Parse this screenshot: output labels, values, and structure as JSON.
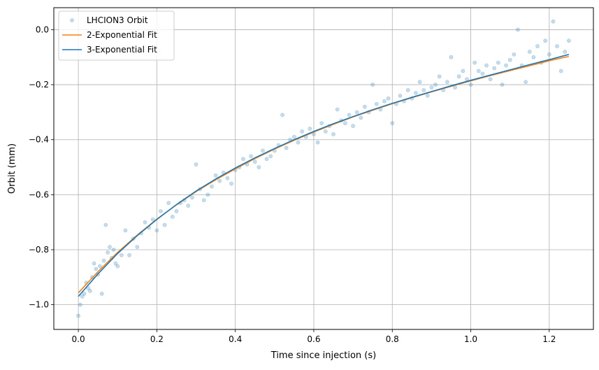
{
  "chart_data": {
    "type": "scatter",
    "xlabel": "Time since injection (s)",
    "ylabel": "Orbit (mm)",
    "xlim": [
      -0.0625,
      1.3125
    ],
    "ylim": [
      -1.09,
      0.08
    ],
    "x_ticks": [
      0.0,
      0.2,
      0.4,
      0.6,
      0.8,
      1.0,
      1.2
    ],
    "x_tick_labels": [
      "0.0",
      "0.2",
      "0.4",
      "0.6",
      "0.8",
      "1.0",
      "1.2"
    ],
    "y_ticks": [
      0.0,
      -0.2,
      -0.4,
      -0.6,
      -0.8,
      -1.0
    ],
    "y_tick_labels": [
      "0.0",
      "−0.2",
      "−0.4",
      "−0.6",
      "−0.8",
      "−1.0"
    ],
    "grid": true,
    "legend_position": "top-left",
    "colors": {
      "scatter": "#1f77b4",
      "two_exp": "#ff7f0e",
      "three_exp": "#1f77b4",
      "grid": "#b0b0b0"
    },
    "series": [
      {
        "name": "LHCION3 Orbit",
        "kind": "scatter",
        "x": [
          0.0,
          0.005,
          0.01,
          0.015,
          0.02,
          0.025,
          0.03,
          0.035,
          0.04,
          0.045,
          0.05,
          0.055,
          0.06,
          0.065,
          0.07,
          0.075,
          0.08,
          0.085,
          0.09,
          0.095,
          0.1,
          0.11,
          0.12,
          0.13,
          0.14,
          0.15,
          0.16,
          0.17,
          0.18,
          0.19,
          0.2,
          0.21,
          0.22,
          0.23,
          0.24,
          0.25,
          0.26,
          0.27,
          0.28,
          0.29,
          0.3,
          0.31,
          0.32,
          0.33,
          0.34,
          0.35,
          0.36,
          0.37,
          0.38,
          0.39,
          0.4,
          0.41,
          0.42,
          0.43,
          0.44,
          0.45,
          0.46,
          0.47,
          0.48,
          0.49,
          0.5,
          0.51,
          0.52,
          0.53,
          0.54,
          0.55,
          0.56,
          0.57,
          0.58,
          0.59,
          0.6,
          0.61,
          0.62,
          0.63,
          0.64,
          0.65,
          0.66,
          0.67,
          0.68,
          0.69,
          0.7,
          0.71,
          0.72,
          0.73,
          0.74,
          0.75,
          0.76,
          0.77,
          0.78,
          0.79,
          0.8,
          0.81,
          0.82,
          0.83,
          0.84,
          0.85,
          0.86,
          0.87,
          0.88,
          0.89,
          0.9,
          0.91,
          0.92,
          0.93,
          0.94,
          0.95,
          0.96,
          0.97,
          0.98,
          0.99,
          1.0,
          1.01,
          1.02,
          1.03,
          1.04,
          1.05,
          1.06,
          1.07,
          1.08,
          1.09,
          1.1,
          1.11,
          1.12,
          1.13,
          1.14,
          1.15,
          1.16,
          1.17,
          1.18,
          1.19,
          1.2,
          1.21,
          1.22,
          1.23,
          1.24,
          1.25
        ],
        "y": [
          -1.04,
          -1.0,
          -0.97,
          -0.96,
          -0.92,
          -0.94,
          -0.95,
          -0.9,
          -0.85,
          -0.87,
          -0.89,
          -0.86,
          -0.96,
          -0.84,
          -0.71,
          -0.81,
          -0.79,
          -0.83,
          -0.8,
          -0.85,
          -0.86,
          -0.82,
          -0.73,
          -0.82,
          -0.76,
          -0.79,
          -0.74,
          -0.7,
          -0.72,
          -0.69,
          -0.73,
          -0.66,
          -0.71,
          -0.63,
          -0.68,
          -0.66,
          -0.63,
          -0.62,
          -0.64,
          -0.61,
          -0.49,
          -0.58,
          -0.62,
          -0.6,
          -0.57,
          -0.53,
          -0.55,
          -0.52,
          -0.54,
          -0.56,
          -0.51,
          -0.5,
          -0.47,
          -0.49,
          -0.46,
          -0.48,
          -0.5,
          -0.44,
          -0.47,
          -0.46,
          -0.44,
          -0.42,
          -0.31,
          -0.43,
          -0.4,
          -0.39,
          -0.41,
          -0.37,
          -0.39,
          -0.36,
          -0.38,
          -0.41,
          -0.34,
          -0.37,
          -0.35,
          -0.38,
          -0.29,
          -0.33,
          -0.34,
          -0.31,
          -0.35,
          -0.3,
          -0.32,
          -0.28,
          -0.3,
          -0.2,
          -0.27,
          -0.29,
          -0.26,
          -0.25,
          -0.34,
          -0.27,
          -0.24,
          -0.26,
          -0.22,
          -0.25,
          -0.23,
          -0.19,
          -0.22,
          -0.24,
          -0.21,
          -0.2,
          -0.17,
          -0.22,
          -0.19,
          -0.1,
          -0.21,
          -0.17,
          -0.15,
          -0.18,
          -0.2,
          -0.12,
          -0.15,
          -0.16,
          -0.13,
          -0.18,
          -0.14,
          -0.12,
          -0.2,
          -0.13,
          -0.11,
          -0.09,
          0.0,
          -0.13,
          -0.19,
          -0.08,
          -0.1,
          -0.06,
          -0.12,
          -0.04,
          -0.09,
          0.03,
          -0.06,
          -0.15,
          -0.08,
          -0.04
        ]
      },
      {
        "name": "2-Exponential Fit",
        "kind": "line",
        "x": [
          0.0,
          0.05,
          0.1,
          0.15,
          0.2,
          0.25,
          0.3,
          0.35,
          0.4,
          0.45,
          0.5,
          0.55,
          0.6,
          0.65,
          0.7,
          0.75,
          0.8,
          0.85,
          0.9,
          0.95,
          1.0,
          1.05,
          1.1,
          1.15,
          1.2,
          1.25
        ],
        "y": [
          -0.957,
          -0.88,
          -0.81,
          -0.747,
          -0.689,
          -0.637,
          -0.589,
          -0.546,
          -0.506,
          -0.469,
          -0.434,
          -0.402,
          -0.372,
          -0.344,
          -0.317,
          -0.293,
          -0.269,
          -0.247,
          -0.226,
          -0.206,
          -0.186,
          -0.167,
          -0.149,
          -0.131,
          -0.113,
          -0.097
        ]
      },
      {
        "name": "3-Exponential Fit",
        "kind": "line",
        "x": [
          0.0,
          0.05,
          0.1,
          0.15,
          0.2,
          0.25,
          0.3,
          0.35,
          0.4,
          0.45,
          0.5,
          0.55,
          0.6,
          0.65,
          0.7,
          0.75,
          0.8,
          0.85,
          0.9,
          0.95,
          1.0,
          1.05,
          1.1,
          1.15,
          1.2,
          1.25
        ],
        "y": [
          -0.97,
          -0.888,
          -0.814,
          -0.749,
          -0.69,
          -0.636,
          -0.587,
          -0.543,
          -0.503,
          -0.466,
          -0.432,
          -0.4,
          -0.37,
          -0.342,
          -0.316,
          -0.291,
          -0.268,
          -0.246,
          -0.225,
          -0.204,
          -0.184,
          -0.165,
          -0.146,
          -0.127,
          -0.109,
          -0.09
        ]
      }
    ]
  }
}
